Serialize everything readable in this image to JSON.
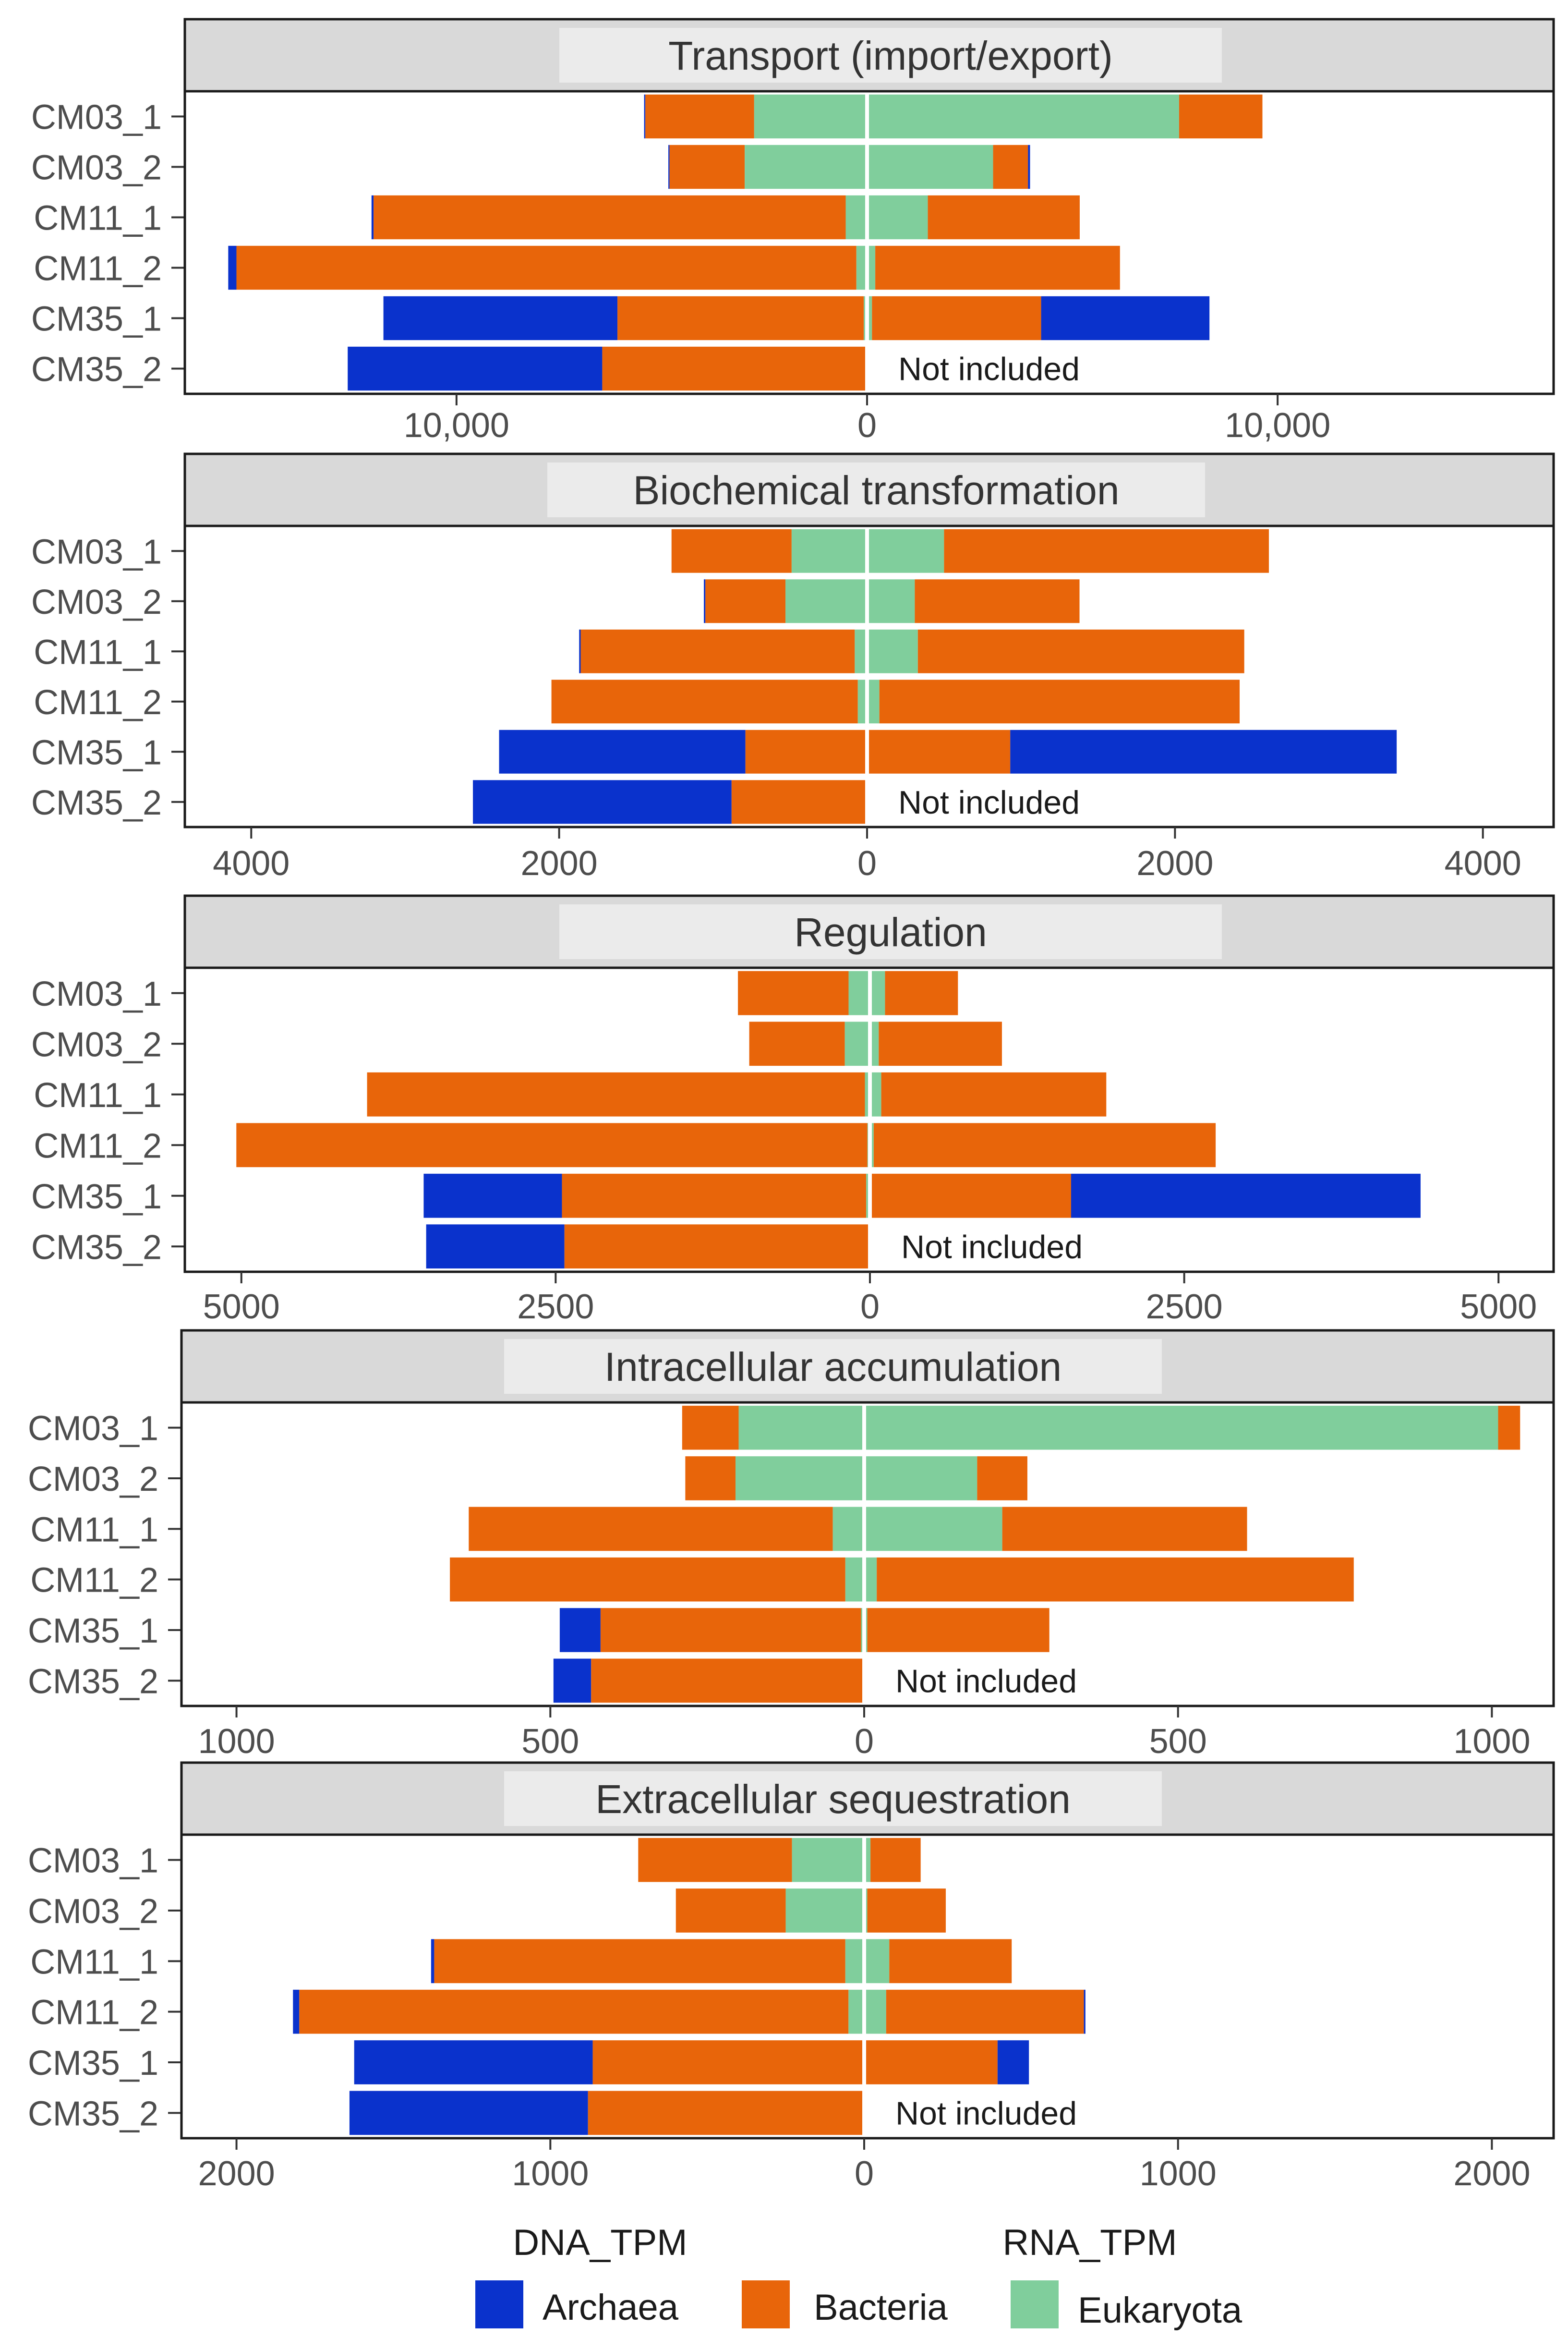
{
  "chart_data": [
    {
      "type": "bar",
      "subtype": "diverging-stacked-horizontal",
      "title": "Transport (import/export)",
      "categories": [
        "CM03_1",
        "CM03_2",
        "CM11_1",
        "CM11_2",
        "CM35_1",
        "CM35_2"
      ],
      "xlim": [
        -16500,
        16500
      ],
      "ticks": [
        -10000,
        0,
        10000
      ],
      "tick_labels": [
        "10,000",
        "0",
        "10,000"
      ],
      "dna_series": [
        {
          "name": "Archaea",
          "values": [
            30,
            30,
            50,
            200,
            5700,
            6200
          ]
        },
        {
          "name": "Bacteria",
          "values": [
            2650,
            1830,
            11500,
            15100,
            6000,
            6450
          ]
        },
        {
          "name": "Eukaryota",
          "values": [
            2750,
            2980,
            520,
            260,
            80,
            0
          ]
        }
      ],
      "rna_series": [
        {
          "name": "Eukaryota",
          "values": [
            7600,
            3070,
            1480,
            200,
            120,
            0
          ]
        },
        {
          "name": "Bacteria",
          "values": [
            2030,
            850,
            3700,
            5960,
            4120,
            0
          ]
        },
        {
          "name": "Archaea",
          "values": [
            0,
            50,
            0,
            0,
            4100,
            0
          ]
        }
      ],
      "not_included_label": "Not included"
    },
    {
      "type": "bar",
      "subtype": "diverging-stacked-horizontal",
      "title": "Biochemical transformation",
      "categories": [
        "CM03_1",
        "CM03_2",
        "CM11_1",
        "CM11_2",
        "CM35_1",
        "CM35_2"
      ],
      "xlim": [
        -4400,
        4400
      ],
      "ticks": [
        -4000,
        -2000,
        0,
        2000,
        4000
      ],
      "tick_labels": [
        "4000",
        "2000",
        "0",
        "2000",
        "4000"
      ],
      "dna_series": [
        {
          "name": "Archaea",
          "values": [
            0,
            10,
            10,
            0,
            1600,
            1680
          ]
        },
        {
          "name": "Bacteria",
          "values": [
            780,
            520,
            1780,
            1990,
            780,
            880
          ]
        },
        {
          "name": "Eukaryota",
          "values": [
            490,
            530,
            80,
            60,
            10,
            0
          ]
        }
      ],
      "rna_series": [
        {
          "name": "Eukaryota",
          "values": [
            500,
            310,
            330,
            80,
            10,
            0
          ]
        },
        {
          "name": "Bacteria",
          "values": [
            2110,
            1070,
            2120,
            2340,
            920,
            0
          ]
        },
        {
          "name": "Archaea",
          "values": [
            0,
            0,
            0,
            0,
            2510,
            0
          ]
        }
      ],
      "not_included_label": "Not included"
    },
    {
      "type": "bar",
      "subtype": "diverging-stacked-horizontal",
      "title": "Regulation",
      "categories": [
        "CM03_1",
        "CM03_2",
        "CM11_1",
        "CM11_2",
        "CM35_1",
        "CM35_2"
      ],
      "xlim": [
        -5400,
        5400
      ],
      "ticks": [
        -5000,
        -2500,
        0,
        2500,
        5000
      ],
      "tick_labels": [
        "5000",
        "2500",
        "0",
        "2500",
        "5000"
      ],
      "dna_series": [
        {
          "name": "Archaea",
          "values": [
            0,
            0,
            0,
            0,
            1100,
            1100
          ]
        },
        {
          "name": "Bacteria",
          "values": [
            880,
            760,
            3960,
            5020,
            2420,
            2430
          ]
        },
        {
          "name": "Eukaryota",
          "values": [
            170,
            200,
            40,
            20,
            30,
            0
          ]
        }
      ],
      "rna_series": [
        {
          "name": "Eukaryota",
          "values": [
            120,
            70,
            90,
            30,
            10,
            0
          ]
        },
        {
          "name": "Bacteria",
          "values": [
            580,
            980,
            1790,
            2720,
            1590,
            0
          ]
        },
        {
          "name": "Archaea",
          "values": [
            0,
            0,
            0,
            0,
            2780,
            0
          ]
        }
      ],
      "not_included_label": "Not included"
    },
    {
      "type": "bar",
      "subtype": "diverging-stacked-horizontal",
      "title": "Intracellular accumulation",
      "categories": [
        "CM03_1",
        "CM03_2",
        "CM11_1",
        "CM11_2",
        "CM35_1",
        "CM35_2"
      ],
      "xlim": [
        -1080,
        1080
      ],
      "ticks": [
        -1000,
        -500,
        0,
        500,
        1000
      ],
      "tick_labels": [
        "1000",
        "500",
        "0",
        "500",
        "1000"
      ],
      "dna_series": [
        {
          "name": "Archaea",
          "values": [
            0,
            0,
            0,
            0,
            65,
            60
          ]
        },
        {
          "name": "Bacteria",
          "values": [
            90,
            80,
            580,
            630,
            415,
            435
          ]
        },
        {
          "name": "Eukaryota",
          "values": [
            200,
            205,
            50,
            30,
            5,
            0
          ]
        }
      ],
      "rna_series": [
        {
          "name": "Eukaryota",
          "values": [
            1010,
            180,
            220,
            20,
            5,
            0
          ]
        },
        {
          "name": "Bacteria",
          "values": [
            35,
            80,
            390,
            760,
            290,
            0
          ]
        },
        {
          "name": "Archaea",
          "values": [
            0,
            0,
            0,
            0,
            0,
            0
          ]
        }
      ],
      "not_included_label": "Not included"
    },
    {
      "type": "bar",
      "subtype": "diverging-stacked-horizontal",
      "title": "Extracellular sequestration",
      "categories": [
        "CM03_1",
        "CM03_2",
        "CM11_1",
        "CM11_2",
        "CM35_1",
        "CM35_2"
      ],
      "xlim": [
        -2160,
        2160
      ],
      "ticks": [
        -2000,
        -1000,
        0,
        1000,
        2000
      ],
      "tick_labels": [
        "2000",
        "1000",
        "0",
        "1000",
        "2000"
      ],
      "dna_series": [
        {
          "name": "Archaea",
          "values": [
            0,
            0,
            10,
            20,
            760,
            760
          ]
        },
        {
          "name": "Bacteria",
          "values": [
            490,
            350,
            1310,
            1750,
            860,
            880
          ]
        },
        {
          "name": "Eukaryota",
          "values": [
            230,
            250,
            60,
            50,
            5,
            0
          ]
        }
      ],
      "rna_series": [
        {
          "name": "Eukaryota",
          "values": [
            20,
            10,
            80,
            70,
            5,
            0
          ]
        },
        {
          "name": "Bacteria",
          "values": [
            160,
            250,
            390,
            630,
            420,
            0
          ]
        },
        {
          "name": "Archaea",
          "values": [
            0,
            0,
            0,
            5,
            100,
            0
          ]
        }
      ],
      "not_included_label": "Not included"
    }
  ],
  "legend": {
    "dna_label": "DNA_TPM",
    "rna_label": "RNA_TPM",
    "items": [
      {
        "name": "Archaea",
        "color": "#0a32cc"
      },
      {
        "name": "Bacteria",
        "color": "#e8650a"
      },
      {
        "name": "Eukaryota",
        "color": "#80ce9c"
      }
    ]
  },
  "colors": {
    "Archaea": "#0a32cc",
    "Bacteria": "#e8650a",
    "Eukaryota": "#80ce9c",
    "strip": "#d9d9d9",
    "strip_label_bg": "#ebebeb",
    "frame": "#1a1a1a"
  }
}
